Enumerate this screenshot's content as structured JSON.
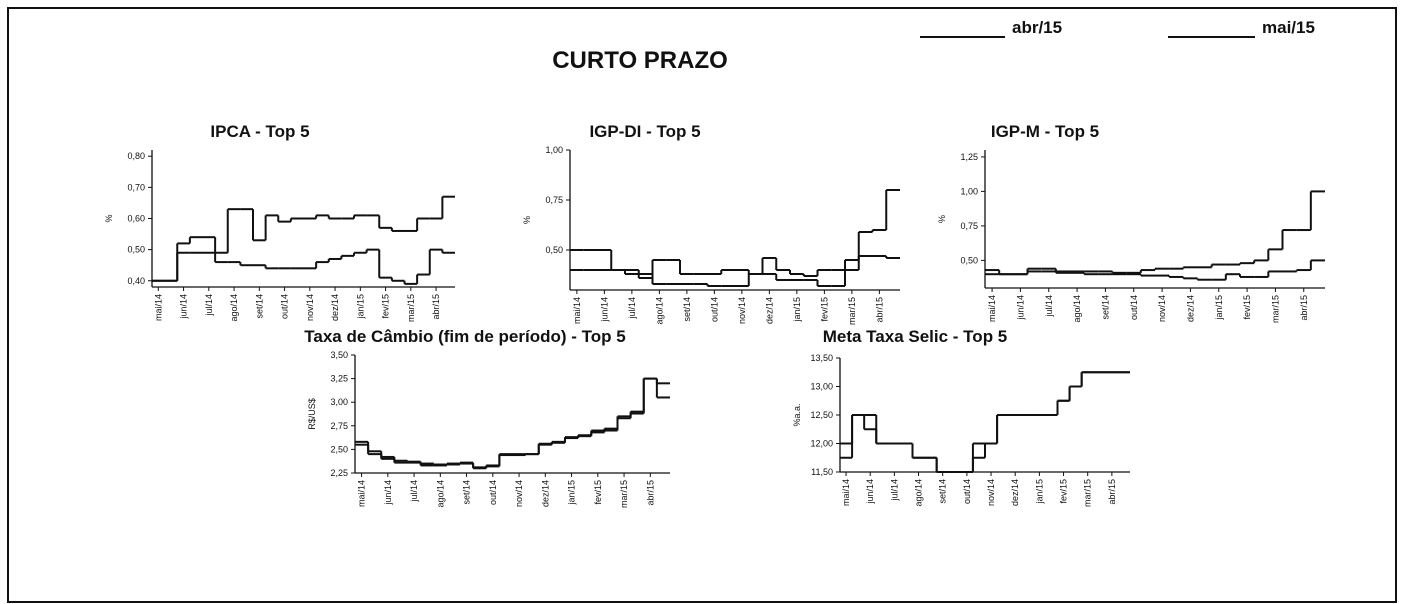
{
  "title": "CURTO PRAZO",
  "legend": [
    {
      "name": "abr/15",
      "color": "#111111"
    },
    {
      "name": "mai/15",
      "color": "#111111"
    }
  ],
  "chart_data": [
    {
      "type": "line",
      "step": true,
      "title": "IPCA - Top 5",
      "ylabel": "%",
      "categories": [
        "mai/14",
        null,
        "jun/14",
        null,
        "jul/14",
        null,
        "ago/14",
        null,
        "set/14",
        null,
        "out/14",
        null,
        "nov/14",
        null,
        "dez/14",
        null,
        "jan/15",
        null,
        "fev/15",
        null,
        "mar/15",
        null,
        "abr/15",
        null
      ],
      "ylim": [
        0.38,
        0.82
      ],
      "yticks": [
        {
          "value": 0.4,
          "label": "0,40"
        },
        {
          "value": 0.5,
          "label": "0,50"
        },
        {
          "value": 0.6,
          "label": "0,60"
        },
        {
          "value": 0.7,
          "label": "0,70"
        },
        {
          "value": 0.8,
          "label": "0,80"
        }
      ],
      "series": [
        {
          "color": "#111111",
          "values": [
            0.4,
            0.4,
            0.52,
            0.54,
            0.54,
            0.49,
            0.63,
            0.63,
            0.53,
            0.61,
            0.59,
            0.6,
            0.6,
            0.61,
            0.6,
            0.6,
            0.61,
            0.61,
            0.57,
            0.56,
            0.56,
            0.6,
            0.6,
            0.67
          ]
        },
        {
          "color": "#111111",
          "values": [
            0.4,
            0.4,
            0.49,
            0.49,
            0.49,
            0.46,
            0.46,
            0.45,
            0.45,
            0.44,
            0.44,
            0.44,
            0.44,
            0.46,
            0.47,
            0.48,
            0.49,
            0.5,
            0.41,
            0.4,
            0.39,
            0.42,
            0.5,
            0.49
          ]
        }
      ]
    },
    {
      "type": "line",
      "step": true,
      "title": "IGP-DI - Top 5",
      "ylabel": "%",
      "categories": [
        "mai/14",
        null,
        "jun/14",
        null,
        "jul/14",
        null,
        "ago/14",
        null,
        "set/14",
        null,
        "out/14",
        null,
        "nov/14",
        null,
        "dez/14",
        null,
        "jan/15",
        null,
        "fev/15",
        null,
        "mar/15",
        null,
        "abr/15",
        null
      ],
      "ylim": [
        0.3,
        1.0
      ],
      "yticks": [
        {
          "value": 0.5,
          "label": "0,50"
        },
        {
          "value": 0.75,
          "label": "0,75"
        },
        {
          "value": 1.0,
          "label": "1,00"
        }
      ],
      "series": [
        {
          "color": "#111111",
          "values": [
            0.5,
            0.5,
            0.5,
            0.4,
            0.4,
            0.36,
            0.45,
            0.45,
            0.38,
            0.38,
            0.38,
            0.4,
            0.4,
            0.38,
            0.46,
            0.4,
            0.38,
            0.37,
            0.4,
            0.4,
            0.45,
            0.59,
            0.6,
            0.8
          ]
        },
        {
          "color": "#111111",
          "values": [
            0.4,
            0.4,
            0.4,
            0.4,
            0.38,
            0.38,
            0.33,
            0.33,
            0.33,
            0.33,
            0.32,
            0.32,
            0.32,
            0.38,
            0.38,
            0.35,
            0.35,
            0.35,
            0.32,
            0.32,
            0.4,
            0.47,
            0.47,
            0.46
          ]
        }
      ]
    },
    {
      "type": "line",
      "step": true,
      "title": "IGP-M - Top 5",
      "ylabel": "%",
      "categories": [
        "mai/14",
        null,
        "jun/14",
        null,
        "jul/14",
        null,
        "ago/14",
        null,
        "set/14",
        null,
        "out/14",
        null,
        "nov/14",
        null,
        "dez/14",
        null,
        "jan/15",
        null,
        "fev/15",
        null,
        "mar/15",
        null,
        "abr/15",
        null
      ],
      "ylim": [
        0.3,
        1.3
      ],
      "yticks": [
        {
          "value": 0.5,
          "label": "0,50"
        },
        {
          "value": 0.75,
          "label": "0,75"
        },
        {
          "value": 1.0,
          "label": "1,00"
        },
        {
          "value": 1.25,
          "label": "1,25"
        }
      ],
      "series": [
        {
          "color": "#111111",
          "values": [
            0.43,
            0.4,
            0.4,
            0.44,
            0.44,
            0.42,
            0.42,
            0.42,
            0.42,
            0.41,
            0.41,
            0.43,
            0.44,
            0.44,
            0.45,
            0.45,
            0.47,
            0.47,
            0.48,
            0.5,
            0.58,
            0.72,
            0.72,
            1.0
          ]
        },
        {
          "color": "#111111",
          "values": [
            0.4,
            0.4,
            0.4,
            0.42,
            0.42,
            0.41,
            0.41,
            0.4,
            0.4,
            0.4,
            0.4,
            0.39,
            0.39,
            0.38,
            0.37,
            0.36,
            0.36,
            0.4,
            0.38,
            0.38,
            0.42,
            0.42,
            0.43,
            0.5
          ]
        }
      ]
    },
    {
      "type": "line",
      "step": true,
      "title": "Taxa de Câmbio (fim de período) - Top 5",
      "ylabel": "R$/US$",
      "categories": [
        "mai/14",
        null,
        "jun/14",
        null,
        "jul/14",
        null,
        "ago/14",
        null,
        "set/14",
        null,
        "out/14",
        null,
        "nov/14",
        null,
        "dez/14",
        null,
        "jan/15",
        null,
        "fev/15",
        null,
        "mar/15",
        null,
        "abr/15",
        null
      ],
      "ylim": [
        2.25,
        3.5
      ],
      "yticks": [
        {
          "value": 2.25,
          "label": "2,25"
        },
        {
          "value": 2.5,
          "label": "2,50"
        },
        {
          "value": 2.75,
          "label": "2,75"
        },
        {
          "value": 3.0,
          "label": "3,00"
        },
        {
          "value": 3.25,
          "label": "3,25"
        },
        {
          "value": 3.5,
          "label": "3,50"
        }
      ],
      "series": [
        {
          "color": "#111111",
          "values": [
            2.58,
            2.48,
            2.42,
            2.38,
            2.37,
            2.35,
            2.34,
            2.35,
            2.36,
            2.31,
            2.33,
            2.45,
            2.45,
            2.45,
            2.55,
            2.58,
            2.62,
            2.65,
            2.7,
            2.72,
            2.85,
            2.9,
            3.25,
            3.2
          ]
        },
        {
          "color": "#111111",
          "values": [
            2.55,
            2.45,
            2.4,
            2.36,
            2.36,
            2.33,
            2.33,
            2.34,
            2.35,
            2.3,
            2.32,
            2.44,
            2.44,
            2.45,
            2.56,
            2.57,
            2.63,
            2.64,
            2.68,
            2.7,
            2.83,
            2.88,
            3.25,
            3.05
          ]
        }
      ]
    },
    {
      "type": "line",
      "step": true,
      "title": "Meta Taxa Selic - Top 5",
      "ylabel": "%a.a.",
      "categories": [
        "mai/14",
        null,
        "jun/14",
        null,
        "jul/14",
        null,
        "ago/14",
        null,
        "set/14",
        null,
        "out/14",
        null,
        "nov/14",
        null,
        "dez/14",
        null,
        "jan/15",
        null,
        "fev/15",
        null,
        "mar/15",
        null,
        "abr/15",
        null
      ],
      "ylim": [
        11.5,
        13.5
      ],
      "yticks": [
        {
          "value": 11.5,
          "label": "11,50"
        },
        {
          "value": 12.0,
          "label": "12,00"
        },
        {
          "value": 12.5,
          "label": "12,50"
        },
        {
          "value": 13.0,
          "label": "13,00"
        },
        {
          "value": 13.5,
          "label": "13,50"
        }
      ],
      "series": [
        {
          "color": "#111111",
          "values": [
            12.0,
            12.5,
            12.5,
            12.0,
            12.0,
            12.0,
            11.75,
            11.75,
            11.5,
            11.5,
            11.5,
            12.0,
            12.0,
            12.5,
            12.5,
            12.5,
            12.5,
            12.5,
            12.75,
            13.0,
            13.25,
            13.25,
            13.25,
            13.25
          ]
        },
        {
          "color": "#111111",
          "values": [
            11.75,
            12.5,
            12.25,
            12.0,
            12.0,
            12.0,
            11.75,
            11.75,
            11.5,
            11.5,
            11.5,
            11.75,
            12.0,
            12.5,
            12.5,
            12.5,
            12.5,
            12.5,
            12.75,
            13.0,
            13.25,
            13.25,
            13.25,
            13.25
          ]
        }
      ]
    }
  ]
}
